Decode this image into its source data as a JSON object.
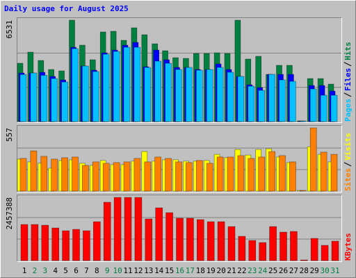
{
  "title": "Daily usage for August 2025",
  "title_color": "#0000ff",
  "weekday_color": "#000000",
  "weekend_color": "#008040",
  "weekend": [
    false,
    true,
    true,
    false,
    false,
    false,
    false,
    false,
    true,
    true,
    false,
    false,
    false,
    false,
    false,
    true,
    true,
    false,
    false,
    false,
    false,
    false,
    true,
    true,
    false,
    false,
    false,
    false,
    false,
    true,
    true
  ],
  "chart_data": [
    {
      "type": "bar",
      "ylim": [
        0,
        6531
      ],
      "grid": true,
      "series": [
        {
          "name": "Hits",
          "color": "#008040",
          "values": [
            3707,
            4413,
            3884,
            3310,
            3222,
            6443,
            4854,
            3928,
            5693,
            5737,
            5163,
            5958,
            5517,
            4943,
            4501,
            4060,
            4016,
            4325,
            4325,
            4369,
            4325,
            6443,
            3972,
            4148,
            3001,
            3575,
            3575,
            0,
            2736,
            2736,
            2383
          ]
        },
        {
          "name": "Files",
          "color": "#0000ff",
          "values": [
            3089,
            3089,
            3133,
            2869,
            2648,
            4722,
            3530,
            3266,
            4369,
            4545,
            4854,
            5031,
            3486,
            4545,
            3928,
            3442,
            3442,
            3310,
            3310,
            3663,
            3310,
            2869,
            2339,
            2162,
            3001,
            3001,
            3001,
            0,
            2295,
            2295,
            1942
          ]
        },
        {
          "name": "Pages",
          "color": "#00c0ff",
          "values": [
            2990,
            3089,
            2942,
            2736,
            2515,
            4634,
            3530,
            3178,
            4281,
            4457,
            4722,
            4722,
            3442,
            3840,
            3707,
            3310,
            3442,
            3266,
            3310,
            3442,
            3133,
            2869,
            2251,
            1986,
            3001,
            2648,
            2560,
            0,
            2074,
            1677,
            1677
          ]
        }
      ]
    },
    {
      "type": "bar",
      "ylim": [
        0,
        557
      ],
      "grid": true,
      "series": [
        {
          "name": "Visits",
          "color": "#ffff00",
          "values": [
            276,
            252,
            240,
            198,
            264,
            270,
            240,
            222,
            264,
            228,
            228,
            258,
            341,
            258,
            270,
            270,
            258,
            258,
            264,
            317,
            288,
            359,
            311,
            359,
            365,
            294,
            246,
            0,
            383,
            317,
            252
          ]
        },
        {
          "name": "Sites",
          "color": "#ff8000",
          "values": [
            282,
            347,
            300,
            276,
            288,
            294,
            222,
            252,
            240,
            246,
            252,
            282,
            252,
            294,
            282,
            252,
            246,
            264,
            240,
            294,
            294,
            306,
            282,
            294,
            341,
            306,
            252,
            0,
            545,
            336,
            317
          ]
        }
      ]
    },
    {
      "type": "bar",
      "ylim": [
        0,
        2457388
      ],
      "grid": true,
      "categories": [
        "1",
        "2",
        "3",
        "4",
        "5",
        "6",
        "7",
        "8",
        "9",
        "10",
        "11",
        "12",
        "13",
        "14",
        "15",
        "16",
        "17",
        "18",
        "19",
        "20",
        "21",
        "22",
        "23",
        "24",
        "25",
        "26",
        "27",
        "28",
        "29",
        "30",
        "31"
      ],
      "series": [
        {
          "name": "KBytes",
          "color": "#ff0000",
          "values": [
            1374000,
            1374000,
            1347573,
            1241881,
            1136189,
            1189035,
            1136189,
            1479688,
            2219532,
            2404493,
            2404493,
            2404493,
            1585380,
            2008148,
            1823187,
            1611803,
            1611803,
            1558957,
            1479688,
            1479688,
            1294727,
            924805,
            766267,
            686998,
            1294727,
            1083343,
            1109766,
            0,
            845536,
            581306,
            739844
          ]
        }
      ]
    }
  ]
}
